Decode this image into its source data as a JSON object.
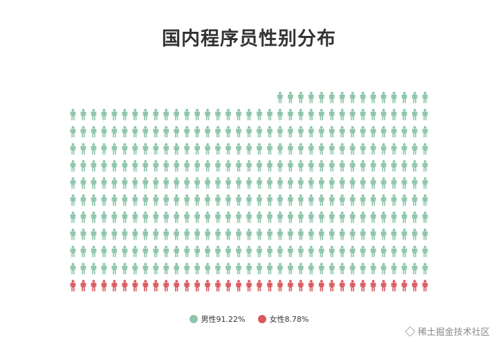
{
  "chart_data": {
    "type": "pictogram",
    "title": "国内程序员性别分布",
    "icon": "person-icon",
    "total_icons": 400,
    "grid": {
      "rows": 13,
      "cols": 35
    },
    "series": [
      {
        "name": "男性91.22%",
        "value": 91.22,
        "color": "#8cc5a9"
      },
      {
        "name": "女性8.78%",
        "value": 8.78,
        "color": "#d9585f"
      }
    ],
    "legend_position": "bottom-center"
  },
  "watermark": {
    "text": "稀土掘金技术社区",
    "icon": "juejin-logo-icon"
  }
}
